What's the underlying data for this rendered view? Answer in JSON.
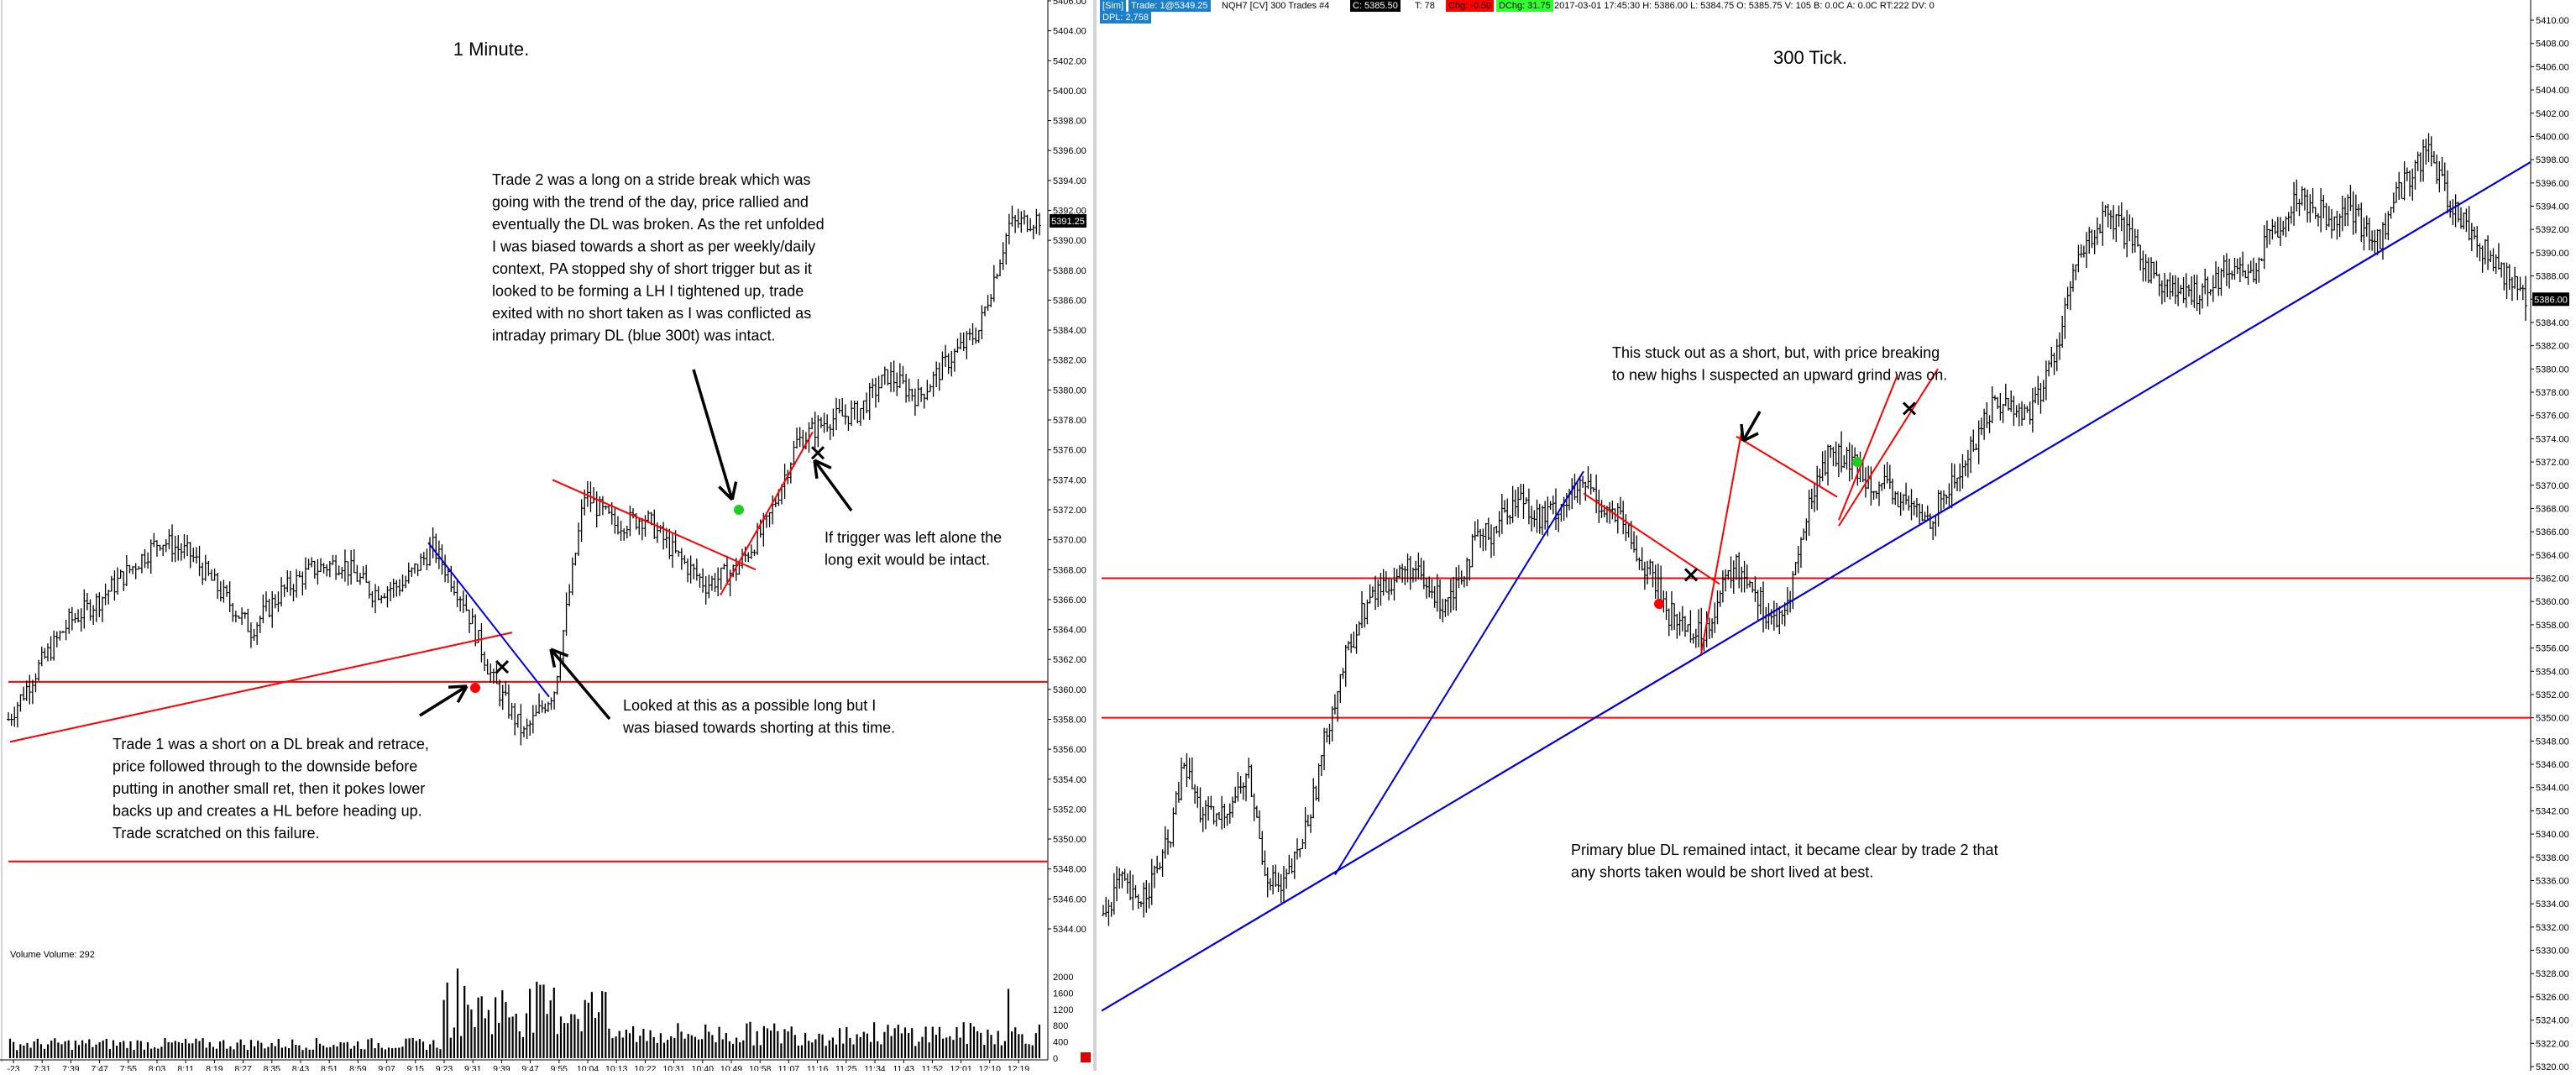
{
  "left": {
    "title": "1 Minute.",
    "volume_label": "Volume  Volume: 292",
    "last_price_badge": "5391.25",
    "annotations": {
      "trade2": [
        "Trade 2 was a long on a stride break which was",
        "going with the trend of the day, price rallied and",
        "eventually the DL was broken.  As the ret unfolded",
        "I was biased towards a short as per weekly/daily",
        "context, PA stopped shy of short trigger but as it",
        "looked to be forming a LH I tightened up, trade",
        "exited with no short taken as I was conflicted as",
        "intraday primary DL (blue 300t) was intact."
      ],
      "trigger": [
        "If trigger was left alone the",
        "long exit would be intact."
      ],
      "looked": [
        "Looked at this as a possible long but I",
        "was biased towards shorting at this time."
      ],
      "trade1": [
        "Trade 1 was a short on a DL break and retrace,",
        "price followed through to the downside before",
        "putting in another small ret, then it pokes lower",
        "backs up and creates a HL before heading up.",
        "Trade scratched on this failure."
      ]
    },
    "time_labels": [
      "-23",
      "7:31",
      "7:39",
      "7:47",
      "7:55",
      "8:03",
      "8:11",
      "8:19",
      "8:27",
      "8:35",
      "8:43",
      "8:51",
      "8:59",
      "9:07",
      "9:15",
      "9:23",
      "9:31",
      "9:39",
      "9:47",
      "9:55",
      "10:04",
      "10:13",
      "10:22",
      "10:31",
      "10:40",
      "10:49",
      "10:58",
      "11:07",
      "11:16",
      "11:25",
      "11:34",
      "11:43",
      "11:52",
      "12:01",
      "12:10",
      "12:19"
    ],
    "price_labels": [
      "5406.00",
      "5404.00",
      "5402.00",
      "5400.00",
      "5398.00",
      "5396.00",
      "5394.00",
      "5392.00",
      "5390.00",
      "5388.00",
      "5386.00",
      "5384.00",
      "5382.00",
      "5380.00",
      "5378.00",
      "5376.00",
      "5374.00",
      "5372.00",
      "5370.00",
      "5368.00",
      "5366.00",
      "5364.00",
      "5362.00",
      "5360.00",
      "5358.00",
      "5356.00",
      "5354.00",
      "5352.00",
      "5350.00",
      "5348.00",
      "5346.00",
      "5344.00"
    ],
    "volume_labels": [
      "2000",
      "1600",
      "1200",
      "800",
      "400",
      "0"
    ]
  },
  "right": {
    "title": "300 Tick.",
    "status_bar": {
      "sim": "[Sim]",
      "trades": "Trade: 1@5349.25",
      "instrument": "NQH7 [CV]  300 Trades  #4",
      "close": "C: 5385.50",
      "ticks": "T: 78",
      "chg": "Chg: -0.50",
      "dchg": "DChg: 31.75",
      "info": "2017-03-01 17:45:30  H: 5386.00  L: 5384.75  O: 5385.75  V: 105  B: 0.0C  A: 0.0C  RT:222  DV: 0",
      "dpl": "DPL: 2,758"
    },
    "last_price_badge": "5386.00",
    "annotations": {
      "stuck": [
        "This stuck out as a short, but, with price breaking",
        "to new highs I suspected an upward grind was on."
      ],
      "primary": [
        "Primary blue DL remained intact, it became clear by trade 2 that",
        "any shorts taken would be short lived at best."
      ]
    },
    "price_labels": [
      "5410.00",
      "5408.00",
      "5406.00",
      "5404.00",
      "5402.00",
      "5400.00",
      "5398.00",
      "5396.00",
      "5394.00",
      "5392.00",
      "5390.00",
      "5388.00",
      "5386.00",
      "5384.00",
      "5382.00",
      "5380.00",
      "5378.00",
      "5376.00",
      "5374.00",
      "5372.00",
      "5370.00",
      "5368.00",
      "5366.00",
      "5364.00",
      "5362.00",
      "5360.00",
      "5358.00",
      "5356.00",
      "5354.00",
      "5352.00",
      "5350.00",
      "5348.00",
      "5346.00",
      "5344.00",
      "5342.00",
      "5340.00",
      "5338.00",
      "5336.00",
      "5334.00",
      "5332.00",
      "5330.00",
      "5328.00",
      "5326.00",
      "5324.00",
      "5322.00",
      "5320.00"
    ]
  },
  "colors": {
    "price_bar": "#000000",
    "support_line": "#ff0000",
    "trend_line_blue": "#0000dd",
    "entry_dot": "#ff0000",
    "long_dot": "#22cc22",
    "badge_bg": "#000000",
    "chg_bg": "#ff0000",
    "dchg_bg": "#33ff33"
  },
  "chart_data": [
    {
      "type": "ohlc",
      "x": [
        "7:31",
        "7:39",
        "7:47",
        "7:55",
        "8:03",
        "8:11",
        "8:19",
        "8:27",
        "8:35",
        "8:43",
        "8:51",
        "8:59",
        "9:07",
        "9:15",
        "9:23",
        "9:31",
        "9:39",
        "9:47",
        "9:55",
        "10:04",
        "10:13",
        "10:22",
        "10:31",
        "10:40",
        "10:49",
        "10:58",
        "11:07",
        "11:16",
        "11:25",
        "11:34",
        "11:43",
        "11:52",
        "12:01",
        "12:10",
        "12:19"
      ],
      "y": [
        5358.0,
        5361.5,
        5364.5,
        5366.0,
        5368.0,
        5370.0,
        5369.0,
        5366.5,
        5364.0,
        5366.5,
        5368.0,
        5368.5,
        5366.5,
        5367.0,
        5369.5,
        5366.0,
        5360.5,
        5357.0,
        5360.0,
        5373.0,
        5371.0,
        5371.5,
        5369.0,
        5367.0,
        5368.0,
        5371.0,
        5376.5,
        5378.0,
        5378.5,
        5381.0,
        5379.5,
        5382.0,
        5384.0,
        5391.0,
        5391.5
      ],
      "ylim": [
        5343.0,
        5407.0
      ],
      "levels": [
        5360.5,
        5348.5
      ]
    },
    {
      "type": "ohlc",
      "x_label": "300 Tick.",
      "y": [
        5333,
        5336,
        5334,
        5336,
        5339,
        5346,
        5342,
        5341,
        5343,
        5345,
        5337,
        5335,
        5338,
        5343,
        5350,
        5355,
        5359,
        5361,
        5362,
        5363,
        5361,
        5360,
        5362,
        5365,
        5366,
        5368,
        5369,
        5367,
        5368,
        5369,
        5370,
        5368,
        5367,
        5364,
        5362,
        5359,
        5358,
        5357,
        5360,
        5363,
        5362,
        5359,
        5358,
        5364,
        5370,
        5373,
        5372,
        5371,
        5370,
        5369,
        5368,
        5367,
        5369,
        5371,
        5374,
        5377,
        5377,
        5376,
        5378,
        5382,
        5388,
        5391,
        5393,
        5392,
        5390,
        5388,
        5387,
        5386,
        5387,
        5388,
        5389,
        5388,
        5391,
        5393,
        5395,
        5394,
        5393,
        5394,
        5392,
        5391,
        5395,
        5397,
        5399,
        5395,
        5393,
        5391,
        5389,
        5388,
        5386
      ],
      "ylim": [
        5320.0,
        5411.0
      ],
      "levels": [
        5362.0,
        5350.0
      ]
    }
  ]
}
